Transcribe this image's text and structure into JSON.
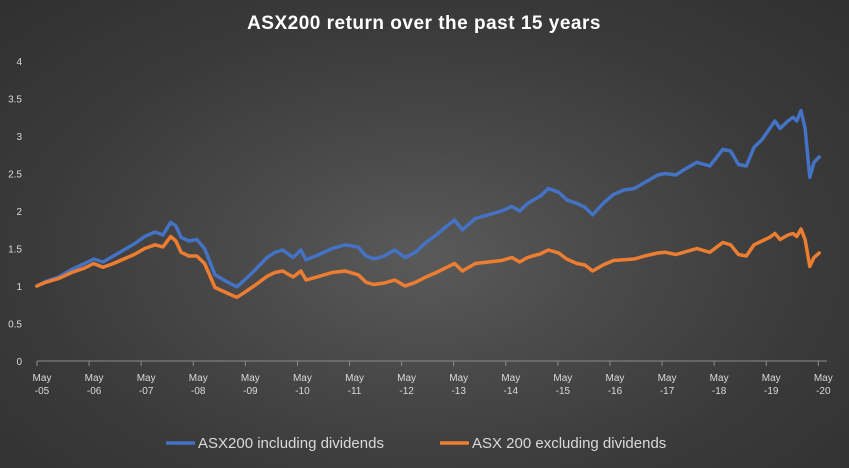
{
  "chart_data": {
    "type": "line",
    "title": "ASX200 return over the past 15 years",
    "xlabel": "",
    "ylabel": "",
    "ylim": [
      0,
      4
    ],
    "yticks": [
      "0",
      "0.5",
      "1",
      "1.5",
      "2",
      "2.5",
      "3",
      "3.5",
      "4"
    ],
    "xlim": [
      2005.333,
      2020.5
    ],
    "xticks": [
      {
        "x": 2005.333,
        "line1": "May",
        "line2": "-05"
      },
      {
        "x": 2006.333,
        "line1": "May",
        "line2": "-06"
      },
      {
        "x": 2007.333,
        "line1": "May",
        "line2": "-07"
      },
      {
        "x": 2008.333,
        "line1": "May",
        "line2": "-08"
      },
      {
        "x": 2009.333,
        "line1": "May",
        "line2": "-09"
      },
      {
        "x": 2010.333,
        "line1": "May",
        "line2": "-10"
      },
      {
        "x": 2011.333,
        "line1": "May",
        "line2": "-11"
      },
      {
        "x": 2012.333,
        "line1": "May",
        "line2": "-12"
      },
      {
        "x": 2013.333,
        "line1": "May",
        "line2": "-13"
      },
      {
        "x": 2014.333,
        "line1": "May",
        "line2": "-14"
      },
      {
        "x": 2015.333,
        "line1": "May",
        "line2": "-15"
      },
      {
        "x": 2016.333,
        "line1": "May",
        "line2": "-16"
      },
      {
        "x": 2017.333,
        "line1": "May",
        "line2": "-17"
      },
      {
        "x": 2018.333,
        "line1": "May",
        "line2": "-18"
      },
      {
        "x": 2019.333,
        "line1": "May",
        "line2": "-19"
      },
      {
        "x": 2020.333,
        "line1": "May",
        "line2": "-20"
      }
    ],
    "grid": false,
    "legend": "bottom",
    "series": [
      {
        "name": "ASX200 including dividends",
        "color": "#4472c4",
        "points": [
          [
            2005.33,
            1.0
          ],
          [
            2005.5,
            1.06
          ],
          [
            2005.75,
            1.12
          ],
          [
            2006.0,
            1.22
          ],
          [
            2006.25,
            1.3
          ],
          [
            2006.42,
            1.36
          ],
          [
            2006.6,
            1.32
          ],
          [
            2006.8,
            1.4
          ],
          [
            2007.0,
            1.48
          ],
          [
            2007.2,
            1.56
          ],
          [
            2007.4,
            1.66
          ],
          [
            2007.6,
            1.72
          ],
          [
            2007.75,
            1.68
          ],
          [
            2007.9,
            1.85
          ],
          [
            2008.0,
            1.8
          ],
          [
            2008.1,
            1.65
          ],
          [
            2008.25,
            1.6
          ],
          [
            2008.4,
            1.62
          ],
          [
            2008.55,
            1.5
          ],
          [
            2008.75,
            1.15
          ],
          [
            2009.0,
            1.05
          ],
          [
            2009.17,
            0.99
          ],
          [
            2009.35,
            1.1
          ],
          [
            2009.5,
            1.2
          ],
          [
            2009.75,
            1.38
          ],
          [
            2009.9,
            1.45
          ],
          [
            2010.05,
            1.48
          ],
          [
            2010.25,
            1.38
          ],
          [
            2010.4,
            1.48
          ],
          [
            2010.5,
            1.35
          ],
          [
            2010.75,
            1.42
          ],
          [
            2011.0,
            1.5
          ],
          [
            2011.25,
            1.55
          ],
          [
            2011.5,
            1.52
          ],
          [
            2011.65,
            1.4
          ],
          [
            2011.8,
            1.36
          ],
          [
            2012.0,
            1.4
          ],
          [
            2012.2,
            1.48
          ],
          [
            2012.4,
            1.38
          ],
          [
            2012.6,
            1.45
          ],
          [
            2012.8,
            1.58
          ],
          [
            2013.0,
            1.68
          ],
          [
            2013.2,
            1.8
          ],
          [
            2013.35,
            1.88
          ],
          [
            2013.5,
            1.75
          ],
          [
            2013.75,
            1.9
          ],
          [
            2014.0,
            1.95
          ],
          [
            2014.25,
            2.0
          ],
          [
            2014.45,
            2.06
          ],
          [
            2014.6,
            2.0
          ],
          [
            2014.75,
            2.1
          ],
          [
            2015.0,
            2.2
          ],
          [
            2015.15,
            2.3
          ],
          [
            2015.35,
            2.25
          ],
          [
            2015.5,
            2.15
          ],
          [
            2015.7,
            2.1
          ],
          [
            2015.85,
            2.05
          ],
          [
            2016.0,
            1.95
          ],
          [
            2016.2,
            2.1
          ],
          [
            2016.4,
            2.22
          ],
          [
            2016.6,
            2.28
          ],
          [
            2016.8,
            2.3
          ],
          [
            2017.0,
            2.38
          ],
          [
            2017.25,
            2.48
          ],
          [
            2017.4,
            2.5
          ],
          [
            2017.6,
            2.48
          ],
          [
            2017.75,
            2.55
          ],
          [
            2018.0,
            2.65
          ],
          [
            2018.25,
            2.6
          ],
          [
            2018.5,
            2.82
          ],
          [
            2018.65,
            2.8
          ],
          [
            2018.8,
            2.62
          ],
          [
            2018.95,
            2.6
          ],
          [
            2019.1,
            2.85
          ],
          [
            2019.25,
            2.95
          ],
          [
            2019.4,
            3.1
          ],
          [
            2019.5,
            3.2
          ],
          [
            2019.6,
            3.1
          ],
          [
            2019.75,
            3.2
          ],
          [
            2019.85,
            3.25
          ],
          [
            2019.92,
            3.2
          ],
          [
            2020.0,
            3.34
          ],
          [
            2020.08,
            3.1
          ],
          [
            2020.17,
            2.45
          ],
          [
            2020.25,
            2.65
          ],
          [
            2020.35,
            2.72
          ]
        ]
      },
      {
        "name": "ASX 200 excluding dividends",
        "color": "#ed7d31",
        "points": [
          [
            2005.33,
            1.0
          ],
          [
            2005.5,
            1.05
          ],
          [
            2005.75,
            1.1
          ],
          [
            2006.0,
            1.18
          ],
          [
            2006.25,
            1.24
          ],
          [
            2006.42,
            1.3
          ],
          [
            2006.6,
            1.25
          ],
          [
            2006.8,
            1.3
          ],
          [
            2007.0,
            1.36
          ],
          [
            2007.2,
            1.42
          ],
          [
            2007.4,
            1.5
          ],
          [
            2007.6,
            1.55
          ],
          [
            2007.75,
            1.52
          ],
          [
            2007.9,
            1.66
          ],
          [
            2008.0,
            1.6
          ],
          [
            2008.1,
            1.45
          ],
          [
            2008.25,
            1.4
          ],
          [
            2008.4,
            1.4
          ],
          [
            2008.55,
            1.3
          ],
          [
            2008.75,
            0.98
          ],
          [
            2009.0,
            0.9
          ],
          [
            2009.17,
            0.85
          ],
          [
            2009.35,
            0.93
          ],
          [
            2009.5,
            1.0
          ],
          [
            2009.75,
            1.13
          ],
          [
            2009.9,
            1.18
          ],
          [
            2010.05,
            1.2
          ],
          [
            2010.25,
            1.12
          ],
          [
            2010.4,
            1.2
          ],
          [
            2010.5,
            1.08
          ],
          [
            2010.75,
            1.13
          ],
          [
            2011.0,
            1.18
          ],
          [
            2011.25,
            1.2
          ],
          [
            2011.5,
            1.15
          ],
          [
            2011.65,
            1.05
          ],
          [
            2011.8,
            1.02
          ],
          [
            2012.0,
            1.04
          ],
          [
            2012.2,
            1.08
          ],
          [
            2012.4,
            1.0
          ],
          [
            2012.6,
            1.05
          ],
          [
            2012.8,
            1.12
          ],
          [
            2013.0,
            1.18
          ],
          [
            2013.2,
            1.25
          ],
          [
            2013.35,
            1.3
          ],
          [
            2013.5,
            1.2
          ],
          [
            2013.75,
            1.3
          ],
          [
            2014.0,
            1.32
          ],
          [
            2014.25,
            1.34
          ],
          [
            2014.45,
            1.38
          ],
          [
            2014.6,
            1.32
          ],
          [
            2014.75,
            1.38
          ],
          [
            2015.0,
            1.43
          ],
          [
            2015.15,
            1.48
          ],
          [
            2015.35,
            1.44
          ],
          [
            2015.5,
            1.36
          ],
          [
            2015.7,
            1.3
          ],
          [
            2015.85,
            1.28
          ],
          [
            2016.0,
            1.2
          ],
          [
            2016.2,
            1.28
          ],
          [
            2016.4,
            1.34
          ],
          [
            2016.6,
            1.35
          ],
          [
            2016.8,
            1.36
          ],
          [
            2017.0,
            1.4
          ],
          [
            2017.25,
            1.44
          ],
          [
            2017.4,
            1.45
          ],
          [
            2017.6,
            1.42
          ],
          [
            2017.75,
            1.45
          ],
          [
            2018.0,
            1.5
          ],
          [
            2018.25,
            1.45
          ],
          [
            2018.5,
            1.58
          ],
          [
            2018.65,
            1.55
          ],
          [
            2018.8,
            1.42
          ],
          [
            2018.95,
            1.4
          ],
          [
            2019.1,
            1.55
          ],
          [
            2019.25,
            1.6
          ],
          [
            2019.4,
            1.65
          ],
          [
            2019.5,
            1.7
          ],
          [
            2019.6,
            1.62
          ],
          [
            2019.75,
            1.68
          ],
          [
            2019.85,
            1.7
          ],
          [
            2019.92,
            1.66
          ],
          [
            2020.0,
            1.76
          ],
          [
            2020.08,
            1.62
          ],
          [
            2020.17,
            1.26
          ],
          [
            2020.25,
            1.38
          ],
          [
            2020.35,
            1.44
          ]
        ]
      }
    ]
  }
}
